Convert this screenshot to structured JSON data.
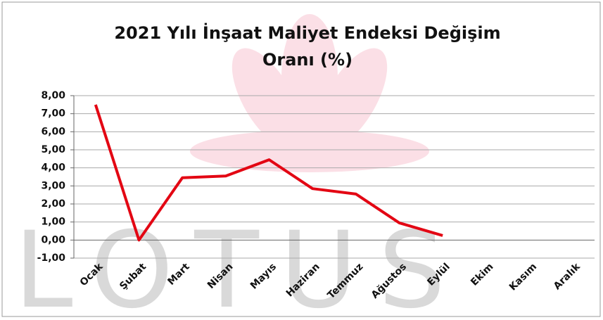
{
  "chart_data": {
    "type": "line",
    "title": "2021 Yılı İnşaat Maliyet Endeksi Değişim Oranı (%)",
    "watermark": "LOTUS",
    "categories": [
      "Ocak",
      "Şubat",
      "Mart",
      "Nisan",
      "Mayıs",
      "Haziran",
      "Temmuz",
      "Ağustos",
      "Eylül",
      "Ekim",
      "Kasım",
      "Aralık"
    ],
    "series": [
      {
        "color": "#e30613",
        "values": [
          7.5,
          0.0,
          3.45,
          3.55,
          4.45,
          2.85,
          2.55,
          0.95,
          0.25,
          null,
          null,
          null
        ]
      }
    ],
    "ylim": [
      -1,
      8
    ],
    "yticks": [
      {
        "value": -1,
        "label": "-1,00"
      },
      {
        "value": 0,
        "label": "0,00"
      },
      {
        "value": 1,
        "label": "1,00"
      },
      {
        "value": 2,
        "label": "2,00"
      },
      {
        "value": 3,
        "label": "3,00"
      },
      {
        "value": 4,
        "label": "4,00"
      },
      {
        "value": 5,
        "label": "5,00"
      },
      {
        "value": 6,
        "label": "6,00"
      },
      {
        "value": 7,
        "label": "7,00"
      },
      {
        "value": 8,
        "label": "8,00"
      }
    ],
    "grid": true
  }
}
